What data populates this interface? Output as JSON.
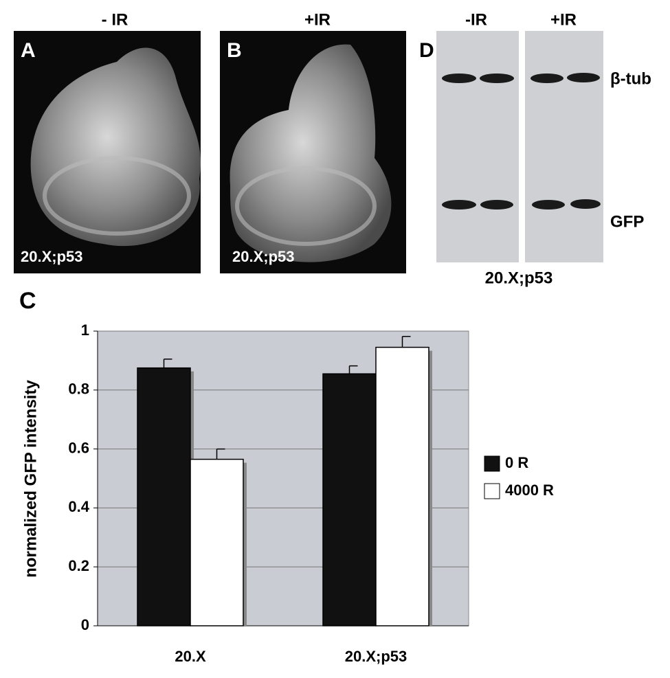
{
  "panels": {
    "A": {
      "letter": "A",
      "header": "- IR",
      "caption": "20.X;p53"
    },
    "B": {
      "letter": "B",
      "header": "+IR",
      "caption": "20.X;p53"
    },
    "D": {
      "letter": "D",
      "lanes": [
        "-IR",
        "+IR"
      ],
      "bands": [
        "β-tub",
        "GFP"
      ],
      "caption": "20.X;p53"
    }
  },
  "chart_data": {
    "type": "bar",
    "panel_letter": "C",
    "ylabel": "normalized GFP intensity",
    "categories": [
      "20.X",
      "20.X;p53"
    ],
    "series": [
      {
        "name": "0 R",
        "color": "#111111",
        "values": [
          0.875,
          0.855
        ],
        "errors": [
          0.03,
          0.027
        ]
      },
      {
        "name": "4000 R",
        "color": "#ffffff",
        "values": [
          0.565,
          0.945
        ],
        "errors": [
          0.035,
          0.037
        ]
      }
    ],
    "ylim": [
      0,
      1
    ],
    "yticks": [
      0,
      0.2,
      0.4,
      0.6,
      0.8,
      1
    ],
    "grid": true,
    "legend": "right"
  }
}
